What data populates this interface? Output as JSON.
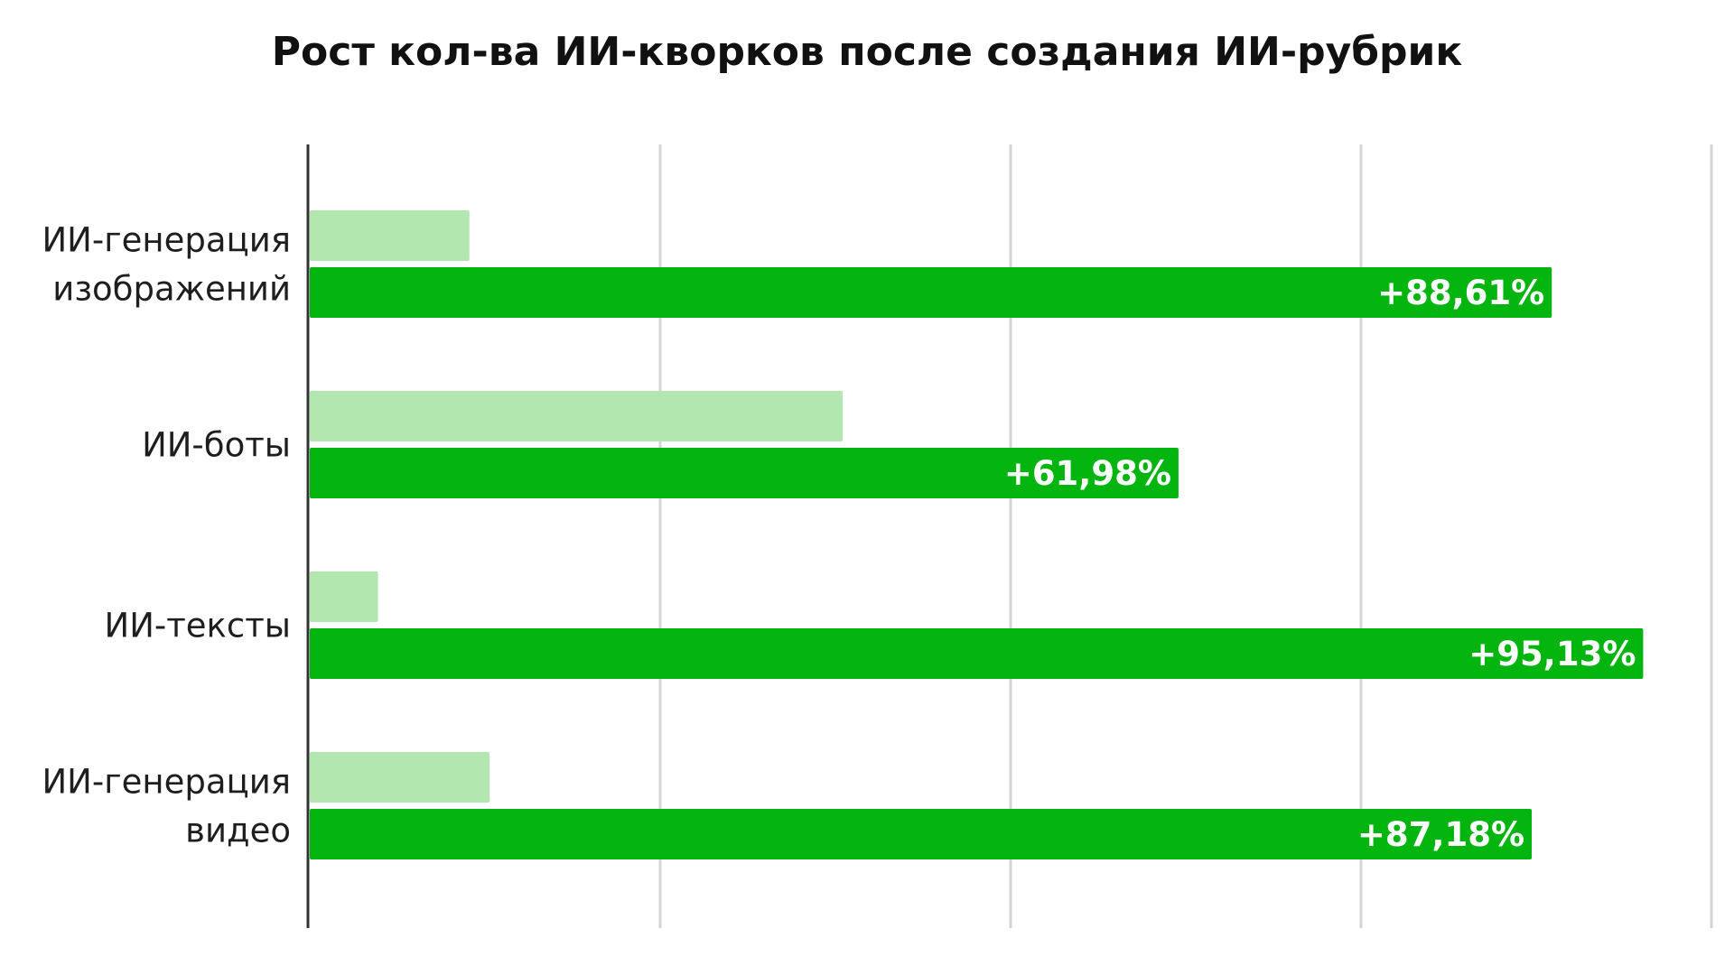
{
  "chart_data": {
    "type": "bar",
    "orientation": "horizontal",
    "title": "Рост кол-ва ИИ-кворков после создания ИИ-рубрик",
    "categories": [
      [
        "ИИ-генерация",
        "изображений"
      ],
      [
        "ИИ-боты"
      ],
      [
        "ИИ-тексты"
      ],
      [
        "ИИ-генерация",
        "видео"
      ]
    ],
    "series": [
      {
        "values": [
          11.39,
          38.02,
          4.87,
          12.82
        ],
        "color": "#b2e8b0"
      },
      {
        "values": [
          88.61,
          61.98,
          95.13,
          87.18
        ],
        "color": "#04b50f",
        "labels": [
          "+88,61%",
          "+61,98%",
          "+95,13%",
          "+87,18%"
        ]
      }
    ],
    "xlim": [
      0,
      100
    ],
    "grid": true,
    "legend": "none"
  }
}
